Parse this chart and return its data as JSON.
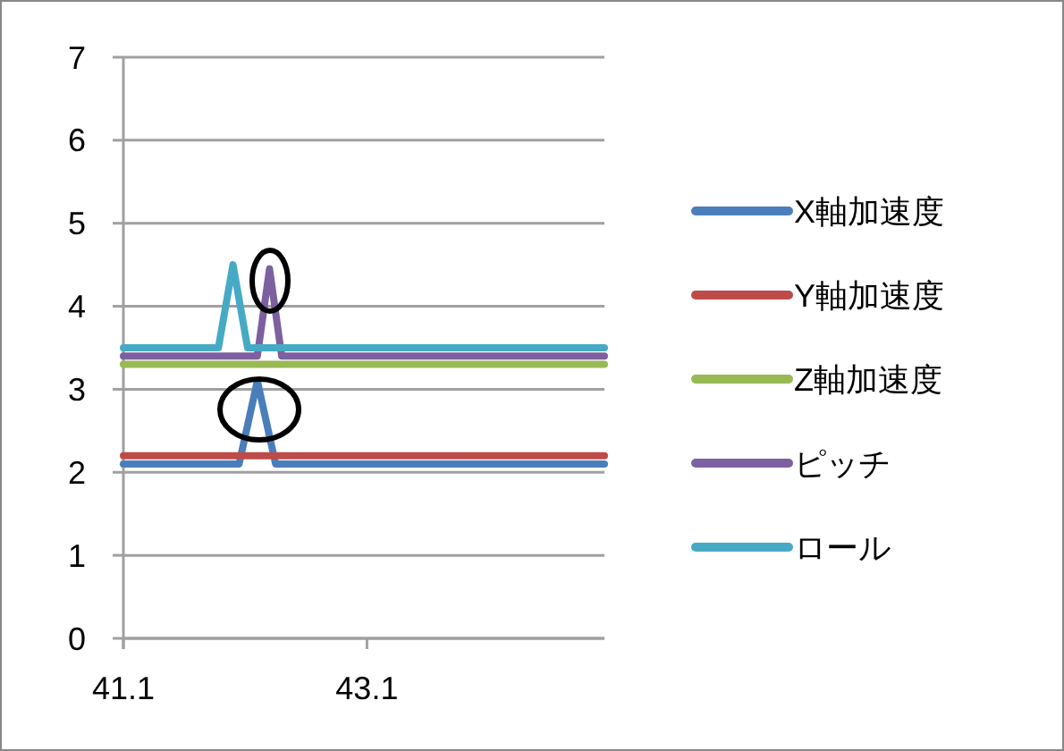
{
  "chart_data": {
    "type": "line",
    "xlim": [
      41.1,
      45.05
    ],
    "xticks": [
      41.1,
      43.1
    ],
    "ylim": [
      0,
      7
    ],
    "yticks": [
      0,
      1,
      2,
      3,
      4,
      5,
      6,
      7
    ],
    "grid": "y",
    "legend": "right",
    "line_style": "solid",
    "series": [
      {
        "name": "X軸加速度",
        "color": "#4a7ebb",
        "x": [
          41.1,
          42.05,
          42.2,
          42.35,
          45.05
        ],
        "values": [
          2.1,
          2.1,
          3.1,
          2.1,
          2.1
        ]
      },
      {
        "name": "Y軸加速度",
        "color": "#be4b48",
        "x": [
          41.1,
          45.05
        ],
        "values": [
          2.2,
          2.2
        ]
      },
      {
        "name": "Z軸加速度",
        "color": "#98b954",
        "x": [
          41.1,
          45.05
        ],
        "values": [
          3.3,
          3.3
        ]
      },
      {
        "name": "ピッチ",
        "color": "#7d60a0",
        "x": [
          41.1,
          42.2,
          42.3,
          42.4,
          45.05
        ],
        "values": [
          3.4,
          3.4,
          4.45,
          3.4,
          3.4
        ]
      },
      {
        "name": "ロール",
        "color": "#46aac5",
        "x": [
          41.1,
          41.88,
          42.0,
          42.12,
          45.05
        ],
        "values": [
          3.5,
          3.5,
          4.5,
          3.5,
          3.5
        ]
      }
    ]
  }
}
